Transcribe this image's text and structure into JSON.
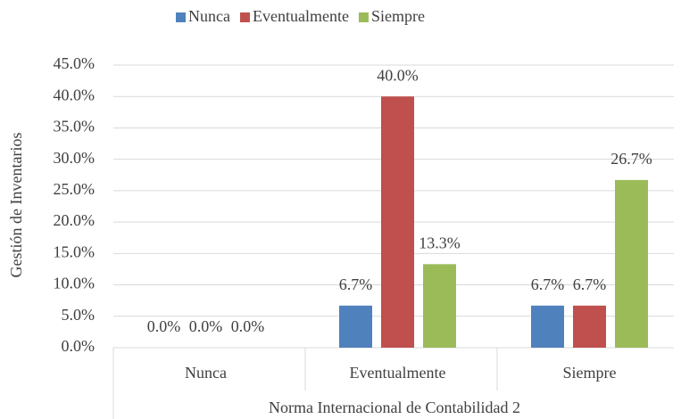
{
  "chart_data": {
    "type": "bar",
    "categories": [
      "Nunca",
      "Eventualmente",
      "Siempre"
    ],
    "series": [
      {
        "name": "Nunca",
        "color": "#4f81bd",
        "values": [
          0,
          6.7,
          6.7
        ],
        "value_labels": [
          "0.0%",
          "6.7%",
          "6.7%"
        ]
      },
      {
        "name": "Eventualmente",
        "color": "#c0504d",
        "values": [
          0,
          40,
          6.7
        ],
        "value_labels": [
          "0.0%",
          "40.0%",
          "6.7%"
        ]
      },
      {
        "name": "Siempre",
        "color": "#9bbb59",
        "values": [
          0,
          13.3,
          26.7
        ],
        "value_labels": [
          "0.0%",
          "13.3%",
          "26.7%"
        ]
      }
    ],
    "ylabel": "Gestión de Inventarios",
    "xlabel": "Norma Internacional de Contabilidad 2",
    "ylim": [
      0,
      45
    ],
    "yticks": [
      {
        "value": 0,
        "label": "0.0%"
      },
      {
        "value": 5,
        "label": "5.0%"
      },
      {
        "value": 10,
        "label": "10.0%"
      },
      {
        "value": 15,
        "label": "15.0%"
      },
      {
        "value": 20,
        "label": "20.0%"
      },
      {
        "value": 25,
        "label": "25.0%"
      },
      {
        "value": 30,
        "label": "30.0%"
      },
      {
        "value": 35,
        "label": "35.0%"
      },
      {
        "value": 40,
        "label": "40.0%"
      },
      {
        "value": 45,
        "label": "45.0%"
      }
    ],
    "grid": true,
    "legend": "top"
  }
}
